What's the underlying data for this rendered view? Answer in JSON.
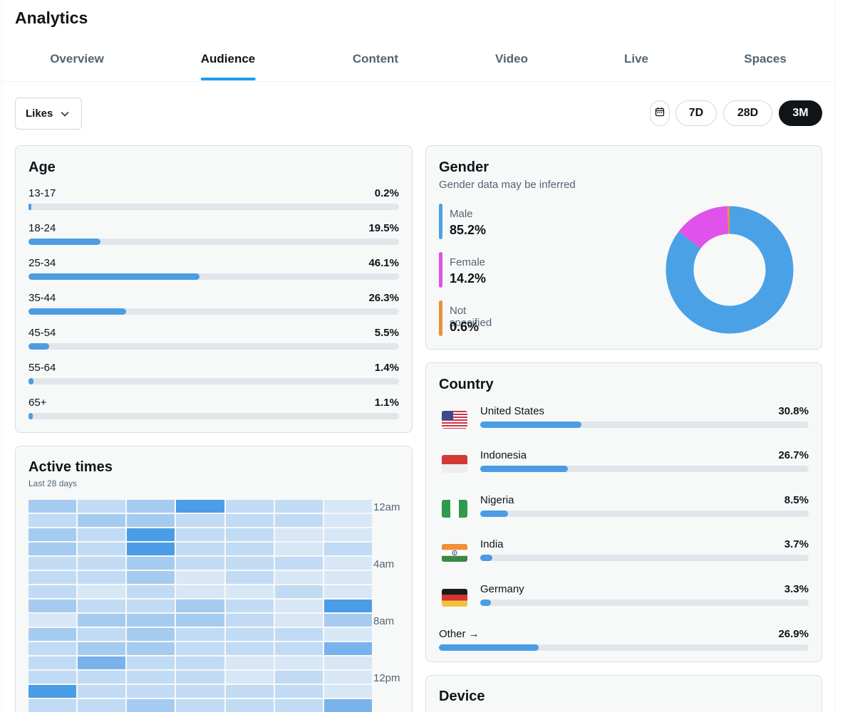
{
  "page_title": "Analytics",
  "tabs": [
    {
      "label": "Overview",
      "active": false
    },
    {
      "label": "Audience",
      "active": true
    },
    {
      "label": "Content",
      "active": false
    },
    {
      "label": "Video",
      "active": false
    },
    {
      "label": "Live",
      "active": false
    },
    {
      "label": "Spaces",
      "active": false
    }
  ],
  "metric_select": {
    "value": "Likes",
    "icon": "chevron-down-icon"
  },
  "date_range": {
    "calendar_icon": "calendar-icon",
    "options": [
      {
        "label": "7D",
        "active": false
      },
      {
        "label": "28D",
        "active": false
      },
      {
        "label": "3M",
        "active": true
      }
    ]
  },
  "age": {
    "title": "Age",
    "rows": [
      {
        "label": "13-17",
        "value": "0.2%",
        "percent": 0.2
      },
      {
        "label": "18-24",
        "value": "19.5%",
        "percent": 19.5
      },
      {
        "label": "25-34",
        "value": "46.1%",
        "percent": 46.1
      },
      {
        "label": "35-44",
        "value": "26.3%",
        "percent": 26.3
      },
      {
        "label": "45-54",
        "value": "5.5%",
        "percent": 5.5
      },
      {
        "label": "55-64",
        "value": "1.4%",
        "percent": 1.4
      },
      {
        "label": "65+",
        "value": "1.1%",
        "percent": 1.1
      }
    ]
  },
  "gender": {
    "title": "Gender",
    "subtitle": "Gender data may be inferred",
    "items": [
      {
        "label": "Male",
        "value": "85.2%",
        "percent": 85.2,
        "color": "#4aa1e6"
      },
      {
        "label": "Female",
        "value": "14.2%",
        "percent": 14.2,
        "color": "#e052ea"
      },
      {
        "label": "Not specified",
        "value": "0.6%",
        "percent": 0.6,
        "color": "#eb8f3a"
      }
    ]
  },
  "country": {
    "title": "Country",
    "rows": [
      {
        "label": "United States",
        "value": "30.8%",
        "percent": 30.8,
        "flag": "flag-us-icon"
      },
      {
        "label": "Indonesia",
        "value": "26.7%",
        "percent": 26.7,
        "flag": "flag-id-icon"
      },
      {
        "label": "Nigeria",
        "value": "8.5%",
        "percent": 8.5,
        "flag": "flag-ng-icon"
      },
      {
        "label": "India",
        "value": "3.7%",
        "percent": 3.7,
        "flag": "flag-in-icon"
      },
      {
        "label": "Germany",
        "value": "3.3%",
        "percent": 3.3,
        "flag": "flag-de-icon"
      }
    ],
    "other": {
      "label": "Other →",
      "value": "26.9%",
      "percent": 26.9
    }
  },
  "active_times": {
    "title": "Active times",
    "subtitle": "Last 28 days",
    "hour_labels": [
      "12am",
      "4am",
      "8am",
      "12pm"
    ],
    "intensity_levels": [
      [
        2,
        1,
        2,
        4,
        1,
        1,
        0
      ],
      [
        1,
        2,
        2,
        1,
        1,
        1,
        0
      ],
      [
        2,
        1,
        4,
        1,
        1,
        0,
        0
      ],
      [
        2,
        1,
        4,
        1,
        1,
        0,
        1
      ],
      [
        1,
        1,
        2,
        1,
        1,
        1,
        0
      ],
      [
        1,
        1,
        2,
        0,
        1,
        0,
        0
      ],
      [
        1,
        0,
        1,
        0,
        0,
        1,
        0
      ],
      [
        2,
        1,
        1,
        2,
        1,
        0,
        4
      ],
      [
        0,
        2,
        2,
        2,
        1,
        0,
        2
      ],
      [
        2,
        1,
        2,
        1,
        1,
        1,
        0
      ],
      [
        1,
        2,
        2,
        1,
        1,
        1,
        3
      ],
      [
        1,
        3,
        1,
        1,
        0,
        0,
        0
      ],
      [
        1,
        1,
        1,
        1,
        0,
        1,
        0
      ],
      [
        4,
        1,
        1,
        1,
        1,
        1,
        0
      ],
      [
        1,
        1,
        2,
        1,
        1,
        1,
        3
      ]
    ],
    "colors": [
      "#d8e7f6",
      "#c1dbf4",
      "#a6cbf0",
      "#79b3ec",
      "#4a9de6"
    ]
  },
  "device": {
    "title": "Device"
  }
}
